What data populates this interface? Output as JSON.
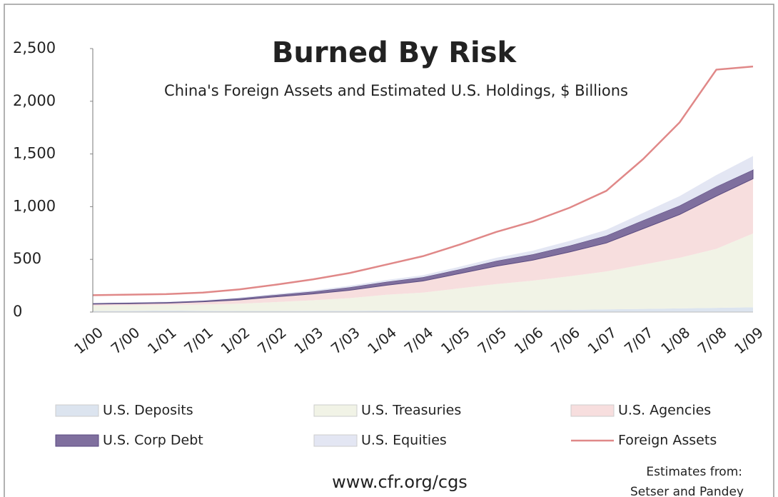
{
  "chart_data": {
    "type": "area",
    "title": "Burned By Risk",
    "subtitle": "China's Foreign Assets and Estimated  U.S. Holdings, $ Billions",
    "categories": [
      "1/00",
      "7/00",
      "1/01",
      "7/01",
      "1/02",
      "7/02",
      "1/03",
      "7/03",
      "1/04",
      "7/04",
      "1/05",
      "7/05",
      "1/06",
      "7/06",
      "1/07",
      "7/07",
      "1/08",
      "7/08",
      "1/09"
    ],
    "series": [
      {
        "name": "U.S. Deposits",
        "color": "#dce4ef",
        "values": [
          10,
          12,
          14,
          12,
          10,
          10,
          12,
          12,
          14,
          15,
          15,
          15,
          18,
          20,
          25,
          30,
          35,
          40,
          45
        ]
      },
      {
        "name": "U.S. Treasuries",
        "color": "#f1f3e6",
        "values": [
          50,
          52,
          54,
          60,
          70,
          85,
          100,
          120,
          150,
          170,
          210,
          250,
          280,
          320,
          360,
          420,
          480,
          560,
          700
        ]
      },
      {
        "name": "U.S. Agencies",
        "color": "#f7dede",
        "values": [
          15,
          16,
          17,
          25,
          35,
          50,
          60,
          75,
          90,
          110,
          140,
          170,
          195,
          230,
          270,
          340,
          410,
          500,
          520
        ]
      },
      {
        "name": "U.S. Corp Debt",
        "color": "#7f6f9e",
        "values": [
          8,
          8,
          8,
          10,
          15,
          18,
          22,
          28,
          32,
          35,
          40,
          50,
          55,
          60,
          70,
          80,
          85,
          90,
          85
        ]
      },
      {
        "name": "U.S. Equities",
        "color": "#e3e6f3",
        "values": [
          5,
          5,
          5,
          6,
          8,
          10,
          12,
          15,
          18,
          20,
          25,
          30,
          35,
          45,
          55,
          70,
          90,
          110,
          130
        ]
      },
      {
        "name": "Foreign Assets",
        "color": "#e08888",
        "style": "line",
        "values": [
          160,
          165,
          170,
          185,
          215,
          260,
          310,
          370,
          450,
          530,
          640,
          760,
          860,
          990,
          1150,
          1450,
          1800,
          2300,
          2330
        ]
      }
    ],
    "ylim": [
      0,
      2500
    ],
    "yticks": [
      0,
      500,
      {
        "value": 1000,
        "label": "1,000"
      },
      {
        "value": 1500,
        "label": "1,500"
      },
      {
        "value": 2000,
        "label": "2,000"
      },
      {
        "value": 2500,
        "label": "2,500"
      }
    ],
    "source": "www.cfr.org/cgs",
    "note": [
      "Estimates from:",
      "Setser and Pandey"
    ]
  }
}
